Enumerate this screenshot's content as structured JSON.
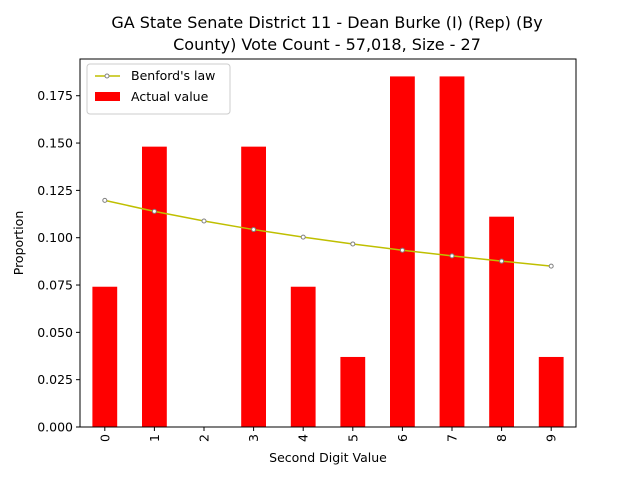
{
  "chart_data": {
    "type": "bar",
    "title_lines": [
      "GA State Senate District 11 - Dean Burke (I) (Rep) (By",
      "County) Vote Count - 57,018, Size - 27"
    ],
    "xlabel": "Second Digit Value",
    "ylabel": "Proportion",
    "categories": [
      "0",
      "1",
      "2",
      "3",
      "4",
      "5",
      "6",
      "7",
      "8",
      "9"
    ],
    "ylim": [
      0,
      0.1944
    ],
    "yticks": [
      "0.000",
      "0.025",
      "0.050",
      "0.075",
      "0.100",
      "0.125",
      "0.150",
      "0.175"
    ],
    "ytick_values": [
      0,
      0.025,
      0.05,
      0.075,
      0.1,
      0.125,
      0.15,
      0.175
    ],
    "series": [
      {
        "name": "Actual value",
        "type": "bar",
        "color": "#ff0000",
        "values": [
          0.0741,
          0.1481,
          0.0,
          0.1481,
          0.0741,
          0.037,
          0.1852,
          0.1852,
          0.1111,
          0.037
        ]
      },
      {
        "name": "Benford's law",
        "type": "line",
        "color": "#bfbf00",
        "marker_color": "#808080",
        "values": [
          0.1197,
          0.1139,
          0.1088,
          0.1043,
          0.1003,
          0.0967,
          0.0934,
          0.0904,
          0.0876,
          0.085
        ]
      }
    ],
    "legend": {
      "placement": "top-left",
      "entries": [
        "Benford's law",
        "Actual value"
      ]
    },
    "grid": false
  }
}
